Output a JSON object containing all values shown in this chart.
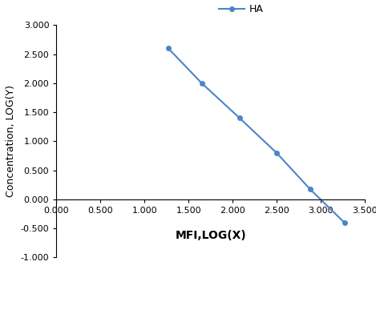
{
  "x": [
    1.27,
    1.65,
    2.08,
    2.5,
    2.88,
    3.27
  ],
  "y": [
    2.6,
    2.0,
    1.4,
    0.8,
    0.175,
    -0.4
  ],
  "line_color": "#4a86c8",
  "marker_color": "#4a86c8",
  "marker_style": "o",
  "marker_size": 4,
  "line_width": 1.5,
  "legend_label": "HA",
  "xlabel": "MFI,LOG(X)",
  "ylabel": "Concentration, LOG(Y)",
  "xlim": [
    0.0,
    3.5
  ],
  "ylim": [
    -1.0,
    3.0
  ],
  "xticks": [
    0.0,
    0.5,
    1.0,
    1.5,
    2.0,
    2.5,
    3.0,
    3.5
  ],
  "yticks": [
    -1.0,
    -0.5,
    0.0,
    0.5,
    1.0,
    1.5,
    2.0,
    2.5,
    3.0
  ],
  "xlabel_fontsize": 10,
  "ylabel_fontsize": 9,
  "tick_fontsize": 8,
  "legend_fontsize": 9,
  "background_color": "#ffffff"
}
